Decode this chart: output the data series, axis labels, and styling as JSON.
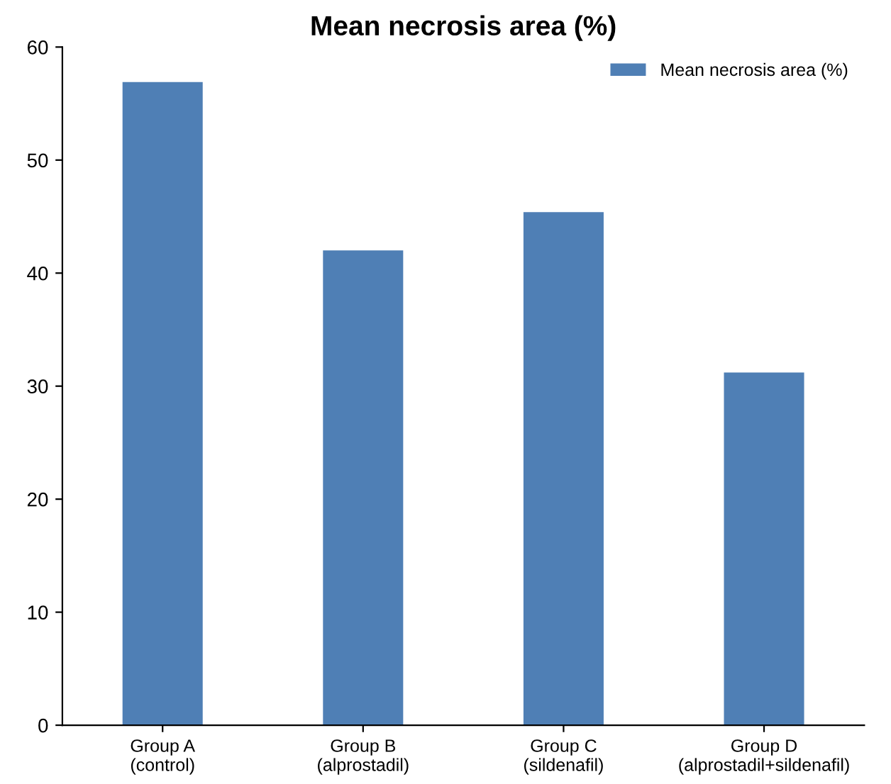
{
  "chart_data": {
    "type": "bar",
    "title": "Mean necrosis area (%)",
    "categories": [
      "Group A\n(control)",
      "Group B\n(alprostadil)",
      "Group C\n(sildenafil)",
      "Group D\n(alprostadil+sildenafil)"
    ],
    "series": [
      {
        "name": "Mean necrosis area (%)",
        "color": "#4f7fb5",
        "values": [
          56.9,
          42.0,
          45.4,
          31.2
        ]
      }
    ],
    "ylim": [
      0,
      60
    ],
    "yticks": [
      0,
      10,
      20,
      30,
      40,
      50,
      60
    ],
    "grid": false,
    "legend": "top right"
  }
}
